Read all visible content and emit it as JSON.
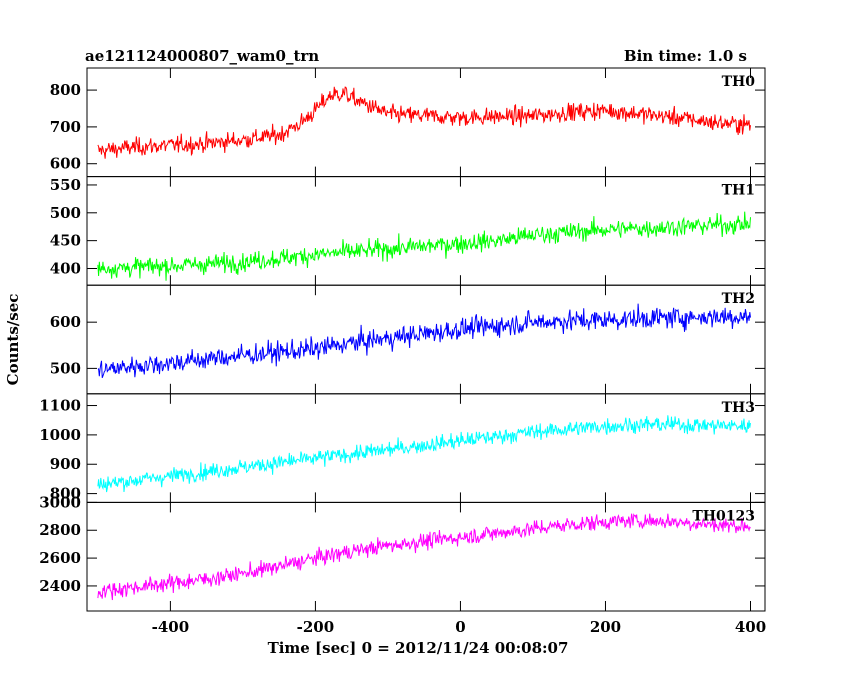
{
  "header": {
    "left_title": "ae121124000807_wam0_trn",
    "right_title": "Bin time: 1.0 s"
  },
  "chart_data": {
    "type": "line",
    "xlabel": "Time [sec] 0 = 2012/11/24 00:08:07",
    "ylabel": "Counts/sec",
    "xlim": [
      -515,
      420
    ],
    "xticks": [
      -400,
      -200,
      0,
      200,
      400
    ],
    "grid": false,
    "bin_time_s": 1.0,
    "panels": [
      {
        "name": "TH0",
        "color": "#ff0000",
        "ylim": [
          565,
          860
        ],
        "yticks": [
          600,
          700,
          800
        ],
        "x": [
          -500,
          -450,
          -400,
          -350,
          -300,
          -250,
          -220,
          -200,
          -180,
          -160,
          -150,
          -100,
          -50,
          0,
          50,
          100,
          150,
          200,
          250,
          300,
          350,
          400
        ],
        "y": [
          635,
          645,
          650,
          655,
          665,
          678,
          710,
          745,
          785,
          792,
          778,
          735,
          730,
          725,
          728,
          730,
          740,
          745,
          735,
          725,
          712,
          705
        ],
        "noise": 40
      },
      {
        "name": "TH1",
        "color": "#00ff00",
        "ylim": [
          370,
          565
        ],
        "yticks": [
          400,
          450,
          500,
          550
        ],
        "x": [
          -500,
          -450,
          -400,
          -350,
          -300,
          -250,
          -200,
          -150,
          -100,
          -50,
          0,
          50,
          100,
          150,
          200,
          250,
          300,
          350,
          400
        ],
        "y": [
          400,
          402,
          405,
          408,
          412,
          418,
          425,
          430,
          435,
          440,
          445,
          450,
          460,
          465,
          470,
          472,
          475,
          478,
          480
        ],
        "noise": 28
      },
      {
        "name": "TH2",
        "color": "#0000ff",
        "ylim": [
          445,
          680
        ],
        "yticks": [
          500,
          600
        ],
        "x": [
          -500,
          -450,
          -400,
          -350,
          -300,
          -250,
          -200,
          -150,
          -100,
          -50,
          0,
          50,
          100,
          150,
          200,
          250,
          300,
          350,
          400
        ],
        "y": [
          495,
          505,
          512,
          520,
          528,
          535,
          542,
          555,
          565,
          575,
          585,
          592,
          600,
          603,
          605,
          608,
          610,
          612,
          612
        ],
        "noise": 38
      },
      {
        "name": "TH3",
        "color": "#00ffff",
        "ylim": [
          770,
          1140
        ],
        "yticks": [
          800,
          900,
          1000,
          1100
        ],
        "x": [
          -500,
          -450,
          -400,
          -350,
          -300,
          -250,
          -200,
          -150,
          -100,
          -50,
          0,
          50,
          100,
          150,
          200,
          250,
          300,
          350,
          400
        ],
        "y": [
          830,
          845,
          860,
          875,
          890,
          905,
          920,
          935,
          950,
          965,
          980,
          995,
          1010,
          1020,
          1030,
          1035,
          1035,
          1032,
          1030
        ],
        "noise": 45
      },
      {
        "name": "TH0123",
        "color": "#ff00ff",
        "ylim": [
          2220,
          3000
        ],
        "yticks": [
          2400,
          2600,
          2800,
          3000
        ],
        "x": [
          -500,
          -450,
          -400,
          -350,
          -300,
          -250,
          -200,
          -150,
          -100,
          -50,
          0,
          50,
          100,
          150,
          200,
          250,
          300,
          350,
          400
        ],
        "y": [
          2360,
          2390,
          2420,
          2450,
          2490,
          2540,
          2600,
          2650,
          2690,
          2720,
          2750,
          2780,
          2810,
          2840,
          2860,
          2870,
          2860,
          2840,
          2830
        ],
        "noise": 95
      }
    ]
  }
}
